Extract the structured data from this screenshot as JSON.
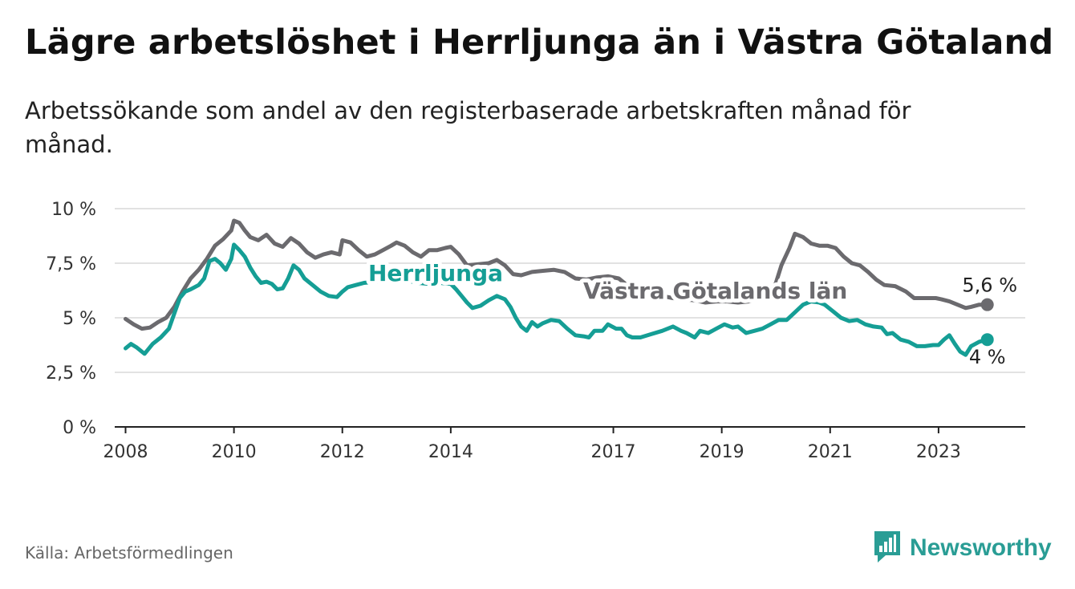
{
  "title": "Lägre arbetslöshet i Herrljunga än i Västra Götaland",
  "subtitle": "Arbetssökande som andel av den registerbaserade arbetskraften månad för månad.",
  "source": "Källa: Arbetsförmedlingen",
  "brand": {
    "name": "Newsworthy",
    "logo_icon": "bar-chart-speech-bubble-icon",
    "color": "#2a9d95"
  },
  "chart_data": {
    "type": "line",
    "title": "Lägre arbetslöshet i Herrljunga än i Västra Götaland",
    "xlabel": "",
    "ylabel": "",
    "ylim": [
      0,
      10
    ],
    "xlim": [
      2007.8,
      2024.6
    ],
    "grid": true,
    "y_ticks": [
      {
        "value": 0,
        "label": "0 %"
      },
      {
        "value": 2.5,
        "label": "2,5 %"
      },
      {
        "value": 5,
        "label": "5 %"
      },
      {
        "value": 7.5,
        "label": "7,5 %"
      },
      {
        "value": 10,
        "label": "10 %"
      }
    ],
    "x_ticks": [
      {
        "value": 2008,
        "label": "2008"
      },
      {
        "value": 2010,
        "label": "2010"
      },
      {
        "value": 2012,
        "label": "2012"
      },
      {
        "value": 2014,
        "label": "2014"
      },
      {
        "value": 2017,
        "label": "2017"
      },
      {
        "value": 2019,
        "label": "2019"
      },
      {
        "value": 2021,
        "label": "2021"
      },
      {
        "value": 2023,
        "label": "2023"
      }
    ],
    "series": [
      {
        "name": "Västra Götalands län",
        "label": "Västra Götalands län",
        "color": "#6b6a6e",
        "end_label": "5,6 %",
        "points": [
          [
            2008.0,
            4.95
          ],
          [
            2008.15,
            4.7
          ],
          [
            2008.3,
            4.5
          ],
          [
            2008.45,
            4.55
          ],
          [
            2008.6,
            4.8
          ],
          [
            2008.75,
            5.0
          ],
          [
            2008.9,
            5.5
          ],
          [
            2009.05,
            6.2
          ],
          [
            2009.2,
            6.8
          ],
          [
            2009.35,
            7.2
          ],
          [
            2009.5,
            7.7
          ],
          [
            2009.65,
            8.3
          ],
          [
            2009.8,
            8.6
          ],
          [
            2009.95,
            9.0
          ],
          [
            2010.0,
            9.45
          ],
          [
            2010.1,
            9.35
          ],
          [
            2010.2,
            9.0
          ],
          [
            2010.3,
            8.7
          ],
          [
            2010.45,
            8.55
          ],
          [
            2010.6,
            8.8
          ],
          [
            2010.75,
            8.4
          ],
          [
            2010.9,
            8.25
          ],
          [
            2011.05,
            8.65
          ],
          [
            2011.2,
            8.4
          ],
          [
            2011.35,
            8.0
          ],
          [
            2011.5,
            7.75
          ],
          [
            2011.65,
            7.9
          ],
          [
            2011.8,
            8.0
          ],
          [
            2011.95,
            7.9
          ],
          [
            2012.0,
            8.55
          ],
          [
            2012.15,
            8.45
          ],
          [
            2012.3,
            8.1
          ],
          [
            2012.45,
            7.8
          ],
          [
            2012.6,
            7.9
          ],
          [
            2012.75,
            8.1
          ],
          [
            2012.9,
            8.3
          ],
          [
            2013.0,
            8.45
          ],
          [
            2013.15,
            8.3
          ],
          [
            2013.3,
            8.0
          ],
          [
            2013.45,
            7.8
          ],
          [
            2013.6,
            8.1
          ],
          [
            2013.75,
            8.1
          ],
          [
            2013.9,
            8.2
          ],
          [
            2014.0,
            8.25
          ],
          [
            2014.15,
            7.9
          ],
          [
            2014.3,
            7.4
          ],
          [
            2014.5,
            7.45
          ],
          [
            2014.7,
            7.5
          ],
          [
            2014.85,
            7.65
          ],
          [
            2015.0,
            7.4
          ],
          [
            2015.15,
            7.0
          ],
          [
            2015.3,
            6.95
          ],
          [
            2015.5,
            7.1
          ],
          [
            2015.7,
            7.15
          ],
          [
            2015.9,
            7.2
          ],
          [
            2016.1,
            7.1
          ],
          [
            2016.3,
            6.8
          ],
          [
            2016.5,
            6.75
          ],
          [
            2016.7,
            6.85
          ],
          [
            2016.9,
            6.9
          ],
          [
            2017.1,
            6.8
          ],
          [
            2017.3,
            6.4
          ],
          [
            2017.5,
            6.1
          ],
          [
            2017.7,
            6.05
          ],
          [
            2017.9,
            6.0
          ],
          [
            2018.1,
            5.9
          ],
          [
            2018.3,
            5.85
          ],
          [
            2018.5,
            5.8
          ],
          [
            2018.7,
            5.7
          ],
          [
            2018.9,
            5.75
          ],
          [
            2019.1,
            5.75
          ],
          [
            2019.3,
            5.7
          ],
          [
            2019.5,
            5.75
          ],
          [
            2019.7,
            5.9
          ],
          [
            2019.9,
            6.2
          ],
          [
            2020.0,
            6.6
          ],
          [
            2020.1,
            7.4
          ],
          [
            2020.25,
            8.2
          ],
          [
            2020.35,
            8.85
          ],
          [
            2020.5,
            8.7
          ],
          [
            2020.65,
            8.4
          ],
          [
            2020.8,
            8.3
          ],
          [
            2020.95,
            8.3
          ],
          [
            2021.1,
            8.2
          ],
          [
            2021.25,
            7.8
          ],
          [
            2021.4,
            7.5
          ],
          [
            2021.55,
            7.4
          ],
          [
            2021.7,
            7.1
          ],
          [
            2021.85,
            6.75
          ],
          [
            2022.0,
            6.5
          ],
          [
            2022.2,
            6.45
          ],
          [
            2022.4,
            6.2
          ],
          [
            2022.55,
            5.9
          ],
          [
            2022.75,
            5.9
          ],
          [
            2022.95,
            5.9
          ],
          [
            2023.05,
            5.85
          ],
          [
            2023.2,
            5.75
          ],
          [
            2023.35,
            5.6
          ],
          [
            2023.5,
            5.45
          ],
          [
            2023.6,
            5.5
          ],
          [
            2023.75,
            5.6
          ],
          [
            2023.9,
            5.6
          ]
        ]
      },
      {
        "name": "Herrljunga",
        "label": "Herrljunga",
        "color": "#159e95",
        "end_label": "4 %",
        "points": [
          [
            2008.0,
            3.6
          ],
          [
            2008.1,
            3.8
          ],
          [
            2008.2,
            3.65
          ],
          [
            2008.35,
            3.35
          ],
          [
            2008.5,
            3.8
          ],
          [
            2008.65,
            4.1
          ],
          [
            2008.8,
            4.5
          ],
          [
            2008.9,
            5.2
          ],
          [
            2009.0,
            5.9
          ],
          [
            2009.1,
            6.2
          ],
          [
            2009.2,
            6.3
          ],
          [
            2009.35,
            6.5
          ],
          [
            2009.45,
            6.8
          ],
          [
            2009.55,
            7.6
          ],
          [
            2009.65,
            7.7
          ],
          [
            2009.75,
            7.5
          ],
          [
            2009.85,
            7.2
          ],
          [
            2009.95,
            7.7
          ],
          [
            2010.0,
            8.35
          ],
          [
            2010.1,
            8.1
          ],
          [
            2010.2,
            7.8
          ],
          [
            2010.3,
            7.3
          ],
          [
            2010.4,
            6.9
          ],
          [
            2010.5,
            6.6
          ],
          [
            2010.6,
            6.65
          ],
          [
            2010.7,
            6.55
          ],
          [
            2010.8,
            6.3
          ],
          [
            2010.9,
            6.35
          ],
          [
            2011.0,
            6.8
          ],
          [
            2011.1,
            7.4
          ],
          [
            2011.2,
            7.2
          ],
          [
            2011.3,
            6.8
          ],
          [
            2011.45,
            6.5
          ],
          [
            2011.6,
            6.2
          ],
          [
            2011.75,
            6.0
          ],
          [
            2011.9,
            5.95
          ],
          [
            2012.0,
            6.2
          ],
          [
            2012.1,
            6.4
          ],
          [
            2012.25,
            6.5
          ],
          [
            2012.4,
            6.6
          ],
          [
            2012.6,
            6.65
          ],
          [
            2012.8,
            6.7
          ],
          [
            2013.0,
            6.75
          ],
          [
            2013.2,
            6.7
          ],
          [
            2013.4,
            6.6
          ],
          [
            2013.6,
            6.55
          ],
          [
            2013.8,
            6.6
          ],
          [
            2014.0,
            6.55
          ],
          [
            2014.1,
            6.3
          ],
          [
            2014.2,
            6.0
          ],
          [
            2014.3,
            5.7
          ],
          [
            2014.4,
            5.45
          ],
          [
            2014.55,
            5.55
          ],
          [
            2014.7,
            5.8
          ],
          [
            2014.85,
            6.0
          ],
          [
            2015.0,
            5.85
          ],
          [
            2015.1,
            5.5
          ],
          [
            2015.2,
            5.0
          ],
          [
            2015.3,
            4.6
          ],
          [
            2015.4,
            4.4
          ],
          [
            2015.5,
            4.8
          ],
          [
            2015.6,
            4.6
          ],
          [
            2015.7,
            4.75
          ],
          [
            2015.85,
            4.9
          ],
          [
            2016.0,
            4.85
          ],
          [
            2016.15,
            4.5
          ],
          [
            2016.3,
            4.2
          ],
          [
            2016.45,
            4.15
          ],
          [
            2016.55,
            4.1
          ],
          [
            2016.65,
            4.4
          ],
          [
            2016.8,
            4.4
          ],
          [
            2016.9,
            4.7
          ],
          [
            2017.05,
            4.5
          ],
          [
            2017.15,
            4.5
          ],
          [
            2017.25,
            4.2
          ],
          [
            2017.35,
            4.1
          ],
          [
            2017.5,
            4.1
          ],
          [
            2017.7,
            4.25
          ],
          [
            2017.9,
            4.4
          ],
          [
            2018.1,
            4.6
          ],
          [
            2018.25,
            4.4
          ],
          [
            2018.35,
            4.3
          ],
          [
            2018.5,
            4.1
          ],
          [
            2018.6,
            4.4
          ],
          [
            2018.75,
            4.3
          ],
          [
            2018.9,
            4.5
          ],
          [
            2019.05,
            4.7
          ],
          [
            2019.2,
            4.55
          ],
          [
            2019.3,
            4.6
          ],
          [
            2019.45,
            4.3
          ],
          [
            2019.6,
            4.4
          ],
          [
            2019.75,
            4.5
          ],
          [
            2019.9,
            4.7
          ],
          [
            2020.05,
            4.9
          ],
          [
            2020.2,
            4.9
          ],
          [
            2020.35,
            5.25
          ],
          [
            2020.5,
            5.6
          ],
          [
            2020.65,
            5.75
          ],
          [
            2020.8,
            5.7
          ],
          [
            2020.9,
            5.6
          ],
          [
            2021.05,
            5.3
          ],
          [
            2021.2,
            5.0
          ],
          [
            2021.35,
            4.85
          ],
          [
            2021.5,
            4.9
          ],
          [
            2021.65,
            4.7
          ],
          [
            2021.8,
            4.6
          ],
          [
            2021.95,
            4.55
          ],
          [
            2022.05,
            4.25
          ],
          [
            2022.15,
            4.3
          ],
          [
            2022.3,
            4.0
          ],
          [
            2022.45,
            3.9
          ],
          [
            2022.6,
            3.7
          ],
          [
            2022.75,
            3.7
          ],
          [
            2022.9,
            3.75
          ],
          [
            2023.0,
            3.75
          ],
          [
            2023.1,
            4.0
          ],
          [
            2023.2,
            4.2
          ],
          [
            2023.3,
            3.8
          ],
          [
            2023.4,
            3.45
          ],
          [
            2023.5,
            3.3
          ],
          [
            2023.6,
            3.7
          ],
          [
            2023.75,
            3.9
          ],
          [
            2023.9,
            4.0
          ]
        ]
      }
    ]
  }
}
